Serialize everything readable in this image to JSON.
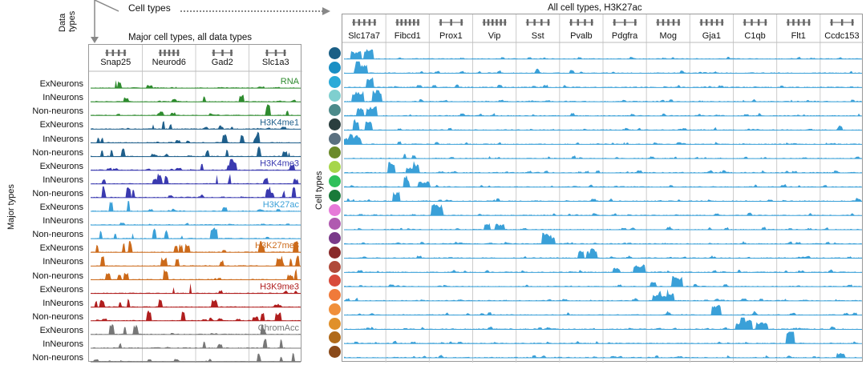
{
  "hierarchy": {
    "data_types_label": "Data\ntypes",
    "cell_types_label": "Cell  types"
  },
  "left_panel": {
    "title": "Major cell types, all data types",
    "side_label": "Major types",
    "genes": [
      "Snap25",
      "Neurod6",
      "Gad2",
      "Slc1a3"
    ],
    "row_labels": [
      "ExNeurons",
      "InNeurons",
      "Non-neurons",
      "ExNeurons",
      "InNeurons",
      "Non-neurons",
      "ExNeurons",
      "InNeurons",
      "Non-neurons",
      "ExNeurons",
      "InNeurons",
      "Non-neurons",
      "ExNeurons",
      "InNeurons",
      "Non-neurons",
      "ExNeurons",
      "InNeurons",
      "Non-neurons",
      "ExNeurons",
      "InNeurons",
      "Non-neurons"
    ],
    "data_types": [
      {
        "name": "RNA",
        "color": "#2e8b2e"
      },
      {
        "name": "H3K4me1",
        "color": "#1f5f8b"
      },
      {
        "name": "H3K4me3",
        "color": "#3a3ab0"
      },
      {
        "name": "H3K27ac",
        "color": "#3aa0d8"
      },
      {
        "name": "H3K27me3",
        "color": "#cc6a1a"
      },
      {
        "name": "H3K9me3",
        "color": "#b01e1e"
      },
      {
        "name": "ChromAcc",
        "color": "#777777"
      }
    ]
  },
  "right_panel": {
    "title": "All cell types, H3K27ac",
    "side_label": "Cell types",
    "genes": [
      "Slc17a7",
      "Fibcd1",
      "Prox1",
      "Vip",
      "Sst",
      "Pvalb",
      "Pdgfra",
      "Mog",
      "Gja1",
      "C1qb",
      "Flt1",
      "Ccdc153"
    ],
    "track_color": "#3aa0d8",
    "cell_type_colors": [
      "#1a5f86",
      "#1a8fc4",
      "#2aaad8",
      "#7fcfcf",
      "#4c8a8a",
      "#2b3f3f",
      "#5a7080",
      "#6b8a2a",
      "#a6d64a",
      "#2ec05a",
      "#1a7a3a",
      "#e67ad8",
      "#b05ab0",
      "#7a3a8a",
      "#8a2a2a",
      "#b04a3a",
      "#d84a3a",
      "#f07a3a",
      "#f08f3a",
      "#e0902a",
      "#b06a1a",
      "#8a4a1a"
    ]
  }
}
